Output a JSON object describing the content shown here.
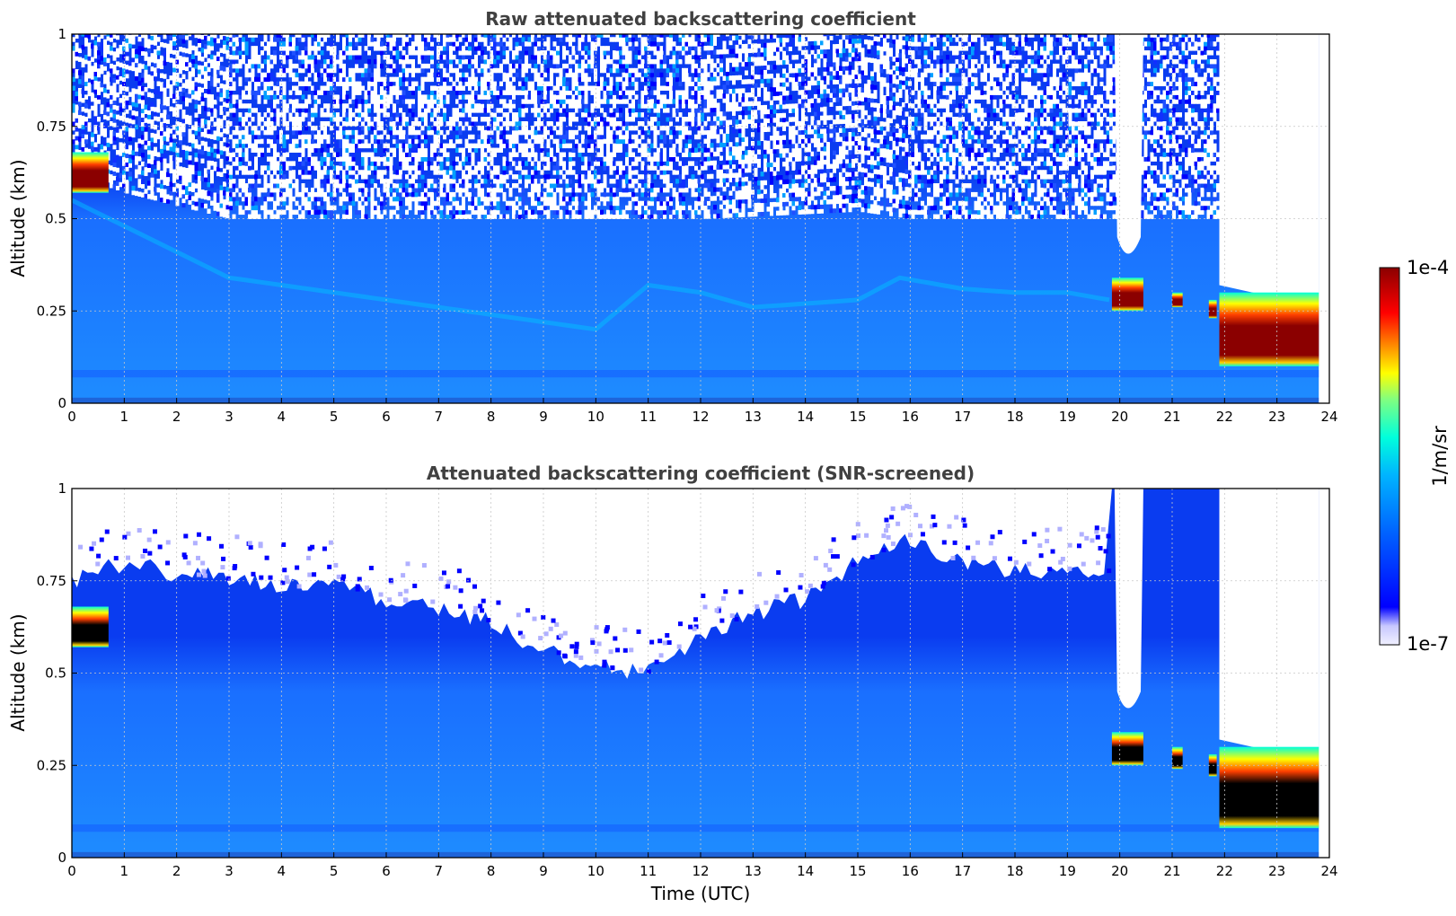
{
  "chart_data": [
    {
      "type": "heatmap",
      "title": "Raw attenuated backscattering coefficient",
      "xlabel": "",
      "ylabel": "Altitude (km)",
      "xlim": [
        0,
        24
      ],
      "ylim": [
        0,
        1
      ],
      "xticks": [
        "0",
        "1",
        "2",
        "3",
        "4",
        "5",
        "6",
        "7",
        "8",
        "9",
        "10",
        "11",
        "12",
        "13",
        "14",
        "15",
        "16",
        "17",
        "18",
        "19",
        "20",
        "21",
        "22",
        "23",
        "24"
      ],
      "yticks": [
        "0",
        "0.25",
        "0.5",
        "0.75",
        "1"
      ],
      "grid": true,
      "data_end_time": 23.8,
      "noise_top_altitude": [
        [
          0,
          0.62
        ],
        [
          1,
          0.57
        ],
        [
          3,
          0.5
        ],
        [
          6,
          0.5
        ],
        [
          9,
          0.5
        ],
        [
          12,
          0.5
        ],
        [
          15,
          0.52
        ],
        [
          16,
          0.5
        ],
        [
          19,
          0.5
        ],
        [
          19.8,
          0.5
        ]
      ],
      "bright_layer_altitude": [
        [
          0,
          0.55
        ],
        [
          1,
          0.48
        ],
        [
          3,
          0.34
        ],
        [
          5,
          0.3
        ],
        [
          7,
          0.26
        ],
        [
          9,
          0.22
        ],
        [
          10,
          0.2
        ],
        [
          11,
          0.32
        ],
        [
          12,
          0.3
        ],
        [
          13,
          0.26
        ],
        [
          14,
          0.27
        ],
        [
          15,
          0.28
        ],
        [
          15.8,
          0.34
        ],
        [
          17,
          0.31
        ],
        [
          18,
          0.3
        ],
        [
          19,
          0.3
        ],
        [
          19.8,
          0.28
        ]
      ],
      "clear_gap_hours": [
        [
          19.9,
          20.4
        ],
        [
          21.85,
          21.95
        ]
      ],
      "saturated_cloud_patches": [
        {
          "time": [
            0.0,
            0.7
          ],
          "altitude": [
            0.57,
            0.68
          ]
        },
        {
          "time": [
            19.85,
            20.45
          ],
          "altitude": [
            0.25,
            0.34
          ]
        },
        {
          "time": [
            21.0,
            21.2
          ],
          "altitude": [
            0.26,
            0.3
          ]
        },
        {
          "time": [
            21.7,
            21.85
          ],
          "altitude": [
            0.23,
            0.28
          ]
        },
        {
          "time": [
            21.9,
            23.8
          ],
          "altitude": [
            0.1,
            0.3
          ]
        }
      ],
      "saturated_color": "#8b0000"
    },
    {
      "type": "heatmap",
      "title": "Attenuated backscattering coefficient (SNR-screened)",
      "xlabel": "Time (UTC)",
      "ylabel": "Altitude (km)",
      "xlim": [
        0,
        24
      ],
      "ylim": [
        0,
        1
      ],
      "xticks": [
        "0",
        "1",
        "2",
        "3",
        "4",
        "5",
        "6",
        "7",
        "8",
        "9",
        "10",
        "11",
        "12",
        "13",
        "14",
        "15",
        "16",
        "17",
        "18",
        "19",
        "20",
        "21",
        "22",
        "23",
        "24"
      ],
      "yticks": [
        "0",
        "0.25",
        "0.5",
        "0.75",
        "1"
      ],
      "grid": true,
      "data_end_time": 23.8,
      "signal_top_altitude": [
        [
          0,
          0.75
        ],
        [
          1,
          0.8
        ],
        [
          2,
          0.77
        ],
        [
          3,
          0.76
        ],
        [
          4,
          0.74
        ],
        [
          5,
          0.74
        ],
        [
          6,
          0.7
        ],
        [
          7,
          0.68
        ],
        [
          8,
          0.64
        ],
        [
          9,
          0.56
        ],
        [
          10,
          0.52
        ],
        [
          11,
          0.5
        ],
        [
          12,
          0.6
        ],
        [
          13,
          0.66
        ],
        [
          14,
          0.7
        ],
        [
          15,
          0.8
        ],
        [
          16,
          0.86
        ],
        [
          17,
          0.8
        ],
        [
          18,
          0.78
        ],
        [
          19,
          0.78
        ],
        [
          19.8,
          0.78
        ]
      ],
      "saturated_cloud_patches": [
        {
          "time": [
            0.0,
            0.7
          ],
          "altitude": [
            0.57,
            0.68
          ]
        },
        {
          "time": [
            19.85,
            20.45
          ],
          "altitude": [
            0.25,
            0.34
          ]
        },
        {
          "time": [
            21.0,
            21.2
          ],
          "altitude": [
            0.24,
            0.3
          ]
        },
        {
          "time": [
            21.7,
            21.85
          ],
          "altitude": [
            0.22,
            0.28
          ]
        },
        {
          "time": [
            21.9,
            23.8
          ],
          "altitude": [
            0.08,
            0.3
          ]
        }
      ],
      "saturated_color": "#000000"
    }
  ],
  "colorbar": {
    "max_label": "1e-4",
    "min_label": "1e-7",
    "unit": "1/m/sr",
    "colormap": [
      "#f0f0ff",
      "#0000ff",
      "#0064ff",
      "#00b4ff",
      "#00ffdc",
      "#80ff80",
      "#ffff00",
      "#ff8000",
      "#ff0000",
      "#8b0000"
    ]
  }
}
